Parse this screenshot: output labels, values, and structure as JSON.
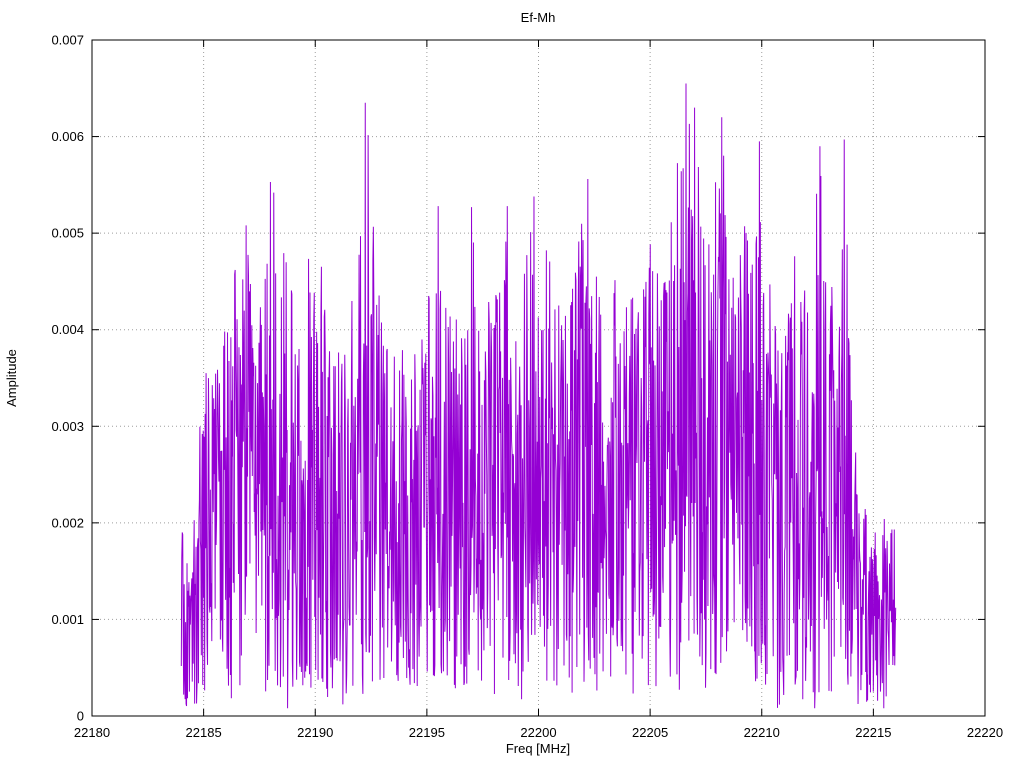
{
  "chart_data": {
    "type": "line",
    "title": "Ef-Mh",
    "xlabel": "Freq [MHz]",
    "ylabel": "Amplitude",
    "xlim": [
      22180,
      22220
    ],
    "ylim": [
      0,
      0.007
    ],
    "xticks": [
      22180,
      22185,
      22190,
      22195,
      22200,
      22205,
      22210,
      22215,
      22220
    ],
    "xtick_labels": [
      "22180",
      "22185",
      "22190",
      "22195",
      "22200",
      "22205",
      "22210",
      "22215",
      "22220"
    ],
    "yticks": [
      0,
      0.001,
      0.002,
      0.003,
      0.004,
      0.005,
      0.006,
      0.007
    ],
    "ytick_labels": [
      "0",
      "0.001",
      "0.002",
      "0.003",
      "0.004",
      "0.005",
      "0.006",
      "0.007"
    ],
    "grid": true,
    "legend": "none",
    "line_color": "#9400D3",
    "background_color": "#ffffff",
    "border_color": "#000000",
    "grid_color": "#9e9e9e",
    "signal_band": [
      22184,
      22216
    ],
    "noise_floor": 0.0002,
    "n_points": 1500,
    "seed": 20524,
    "peak": {
      "x": 22206.6,
      "y": 0.00655
    },
    "spikes": [
      [
        22186.9,
        0.00508
      ],
      [
        22188.0,
        0.00553
      ],
      [
        22192.25,
        0.00635
      ],
      [
        22195.5,
        0.00528
      ],
      [
        22197.0,
        0.00527
      ],
      [
        22198.6,
        0.00528
      ],
      [
        22199.8,
        0.00538
      ],
      [
        22202.2,
        0.00556
      ],
      [
        22206.6,
        0.00655
      ],
      [
        22207.0,
        0.0063
      ],
      [
        22208.2,
        0.0062
      ],
      [
        22209.9,
        0.00595
      ],
      [
        22212.6,
        0.0059
      ],
      [
        22213.7,
        0.00597
      ]
    ],
    "envelope": [
      [
        22184.0,
        0.0021
      ],
      [
        22184.4,
        0.0013
      ],
      [
        22184.8,
        0.0031
      ],
      [
        22185.2,
        0.004
      ],
      [
        22185.6,
        0.0036
      ],
      [
        22186.0,
        0.0042
      ],
      [
        22186.4,
        0.0047
      ],
      [
        22186.8,
        0.0051
      ],
      [
        22187.2,
        0.0046
      ],
      [
        22187.6,
        0.0044
      ],
      [
        22188.0,
        0.0055
      ],
      [
        22188.4,
        0.0053
      ],
      [
        22188.8,
        0.0046
      ],
      [
        22189.2,
        0.0044
      ],
      [
        22189.6,
        0.0046
      ],
      [
        22190.0,
        0.0052
      ],
      [
        22190.4,
        0.0046
      ],
      [
        22190.8,
        0.0036
      ],
      [
        22191.2,
        0.004
      ],
      [
        22191.6,
        0.0043
      ],
      [
        22192.0,
        0.0052
      ],
      [
        22192.3,
        0.0064
      ],
      [
        22192.6,
        0.0053
      ],
      [
        22193.0,
        0.004
      ],
      [
        22193.4,
        0.0037
      ],
      [
        22193.8,
        0.0038
      ],
      [
        22194.2,
        0.0041
      ],
      [
        22194.6,
        0.004
      ],
      [
        22195.0,
        0.0042
      ],
      [
        22195.4,
        0.0053
      ],
      [
        22195.8,
        0.0043
      ],
      [
        22196.2,
        0.0042
      ],
      [
        22196.6,
        0.0039
      ],
      [
        22197.0,
        0.0052
      ],
      [
        22197.4,
        0.0041
      ],
      [
        22197.8,
        0.0048
      ],
      [
        22198.2,
        0.0043
      ],
      [
        22198.6,
        0.0053
      ],
      [
        22199.0,
        0.0042
      ],
      [
        22199.4,
        0.0047
      ],
      [
        22199.8,
        0.0054
      ],
      [
        22200.2,
        0.0046
      ],
      [
        22200.6,
        0.0052
      ],
      [
        22201.0,
        0.0043
      ],
      [
        22201.4,
        0.0044
      ],
      [
        22201.8,
        0.005
      ],
      [
        22202.2,
        0.0056
      ],
      [
        22202.6,
        0.0048
      ],
      [
        22203.0,
        0.004
      ],
      [
        22203.4,
        0.0046
      ],
      [
        22203.8,
        0.0047
      ],
      [
        22204.2,
        0.0044
      ],
      [
        22204.6,
        0.0047
      ],
      [
        22205.0,
        0.0049
      ],
      [
        22205.4,
        0.0047
      ],
      [
        22205.8,
        0.0055
      ],
      [
        22206.2,
        0.0058
      ],
      [
        22206.6,
        0.0065
      ],
      [
        22207.0,
        0.0063
      ],
      [
        22207.4,
        0.0051
      ],
      [
        22207.8,
        0.0058
      ],
      [
        22208.2,
        0.0062
      ],
      [
        22208.6,
        0.0046
      ],
      [
        22209.0,
        0.0056
      ],
      [
        22209.4,
        0.0051
      ],
      [
        22209.8,
        0.0059
      ],
      [
        22210.2,
        0.005
      ],
      [
        22210.6,
        0.0043
      ],
      [
        22211.0,
        0.0038
      ],
      [
        22211.4,
        0.0049
      ],
      [
        22211.8,
        0.0047
      ],
      [
        22212.2,
        0.0051
      ],
      [
        22212.6,
        0.0059
      ],
      [
        22213.0,
        0.0044
      ],
      [
        22213.4,
        0.0047
      ],
      [
        22213.7,
        0.006
      ],
      [
        22214.0,
        0.004
      ],
      [
        22214.3,
        0.0024
      ],
      [
        22214.7,
        0.0021
      ],
      [
        22215.2,
        0.002
      ],
      [
        22215.6,
        0.0021
      ],
      [
        22216.0,
        0.0019
      ]
    ]
  }
}
